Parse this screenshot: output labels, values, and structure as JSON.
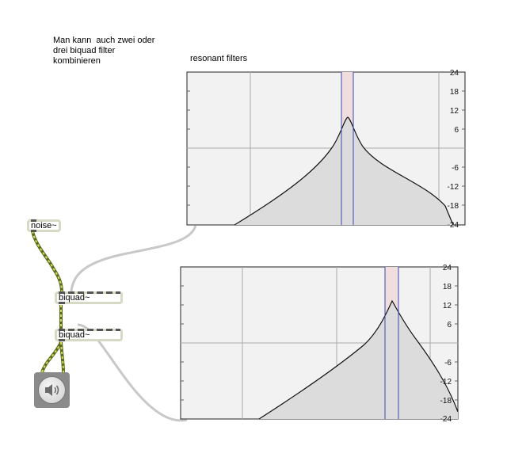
{
  "comments": {
    "intro": "Man kann  auch zwei oder\ndrei biquad filter\nkombinieren",
    "resonant": "resonant filters"
  },
  "objects": {
    "noise": "noise~",
    "biquad1": "biquad~",
    "biquad2": "biquad~"
  },
  "icons": {
    "dac": "speaker-icon"
  },
  "filtergraphs": {
    "top": {
      "y_tick_labels": [
        "24",
        "18",
        "12",
        "6",
        "-6",
        "-12",
        "-18",
        "-24"
      ],
      "center_band": "peak"
    },
    "bottom": {
      "y_tick_labels": [
        "24",
        "18",
        "12",
        "6",
        "-6",
        "-12",
        "-18",
        "-24"
      ],
      "center_band": "peak"
    }
  },
  "colors": {
    "graph_bg": "#f2f2f2",
    "graph_fill": "#dcdcdc",
    "band_fill": "#f0dede",
    "band_line": "#3c46b4",
    "signal_cord": "#7b8a2a",
    "cord": "#c8c8c8"
  }
}
